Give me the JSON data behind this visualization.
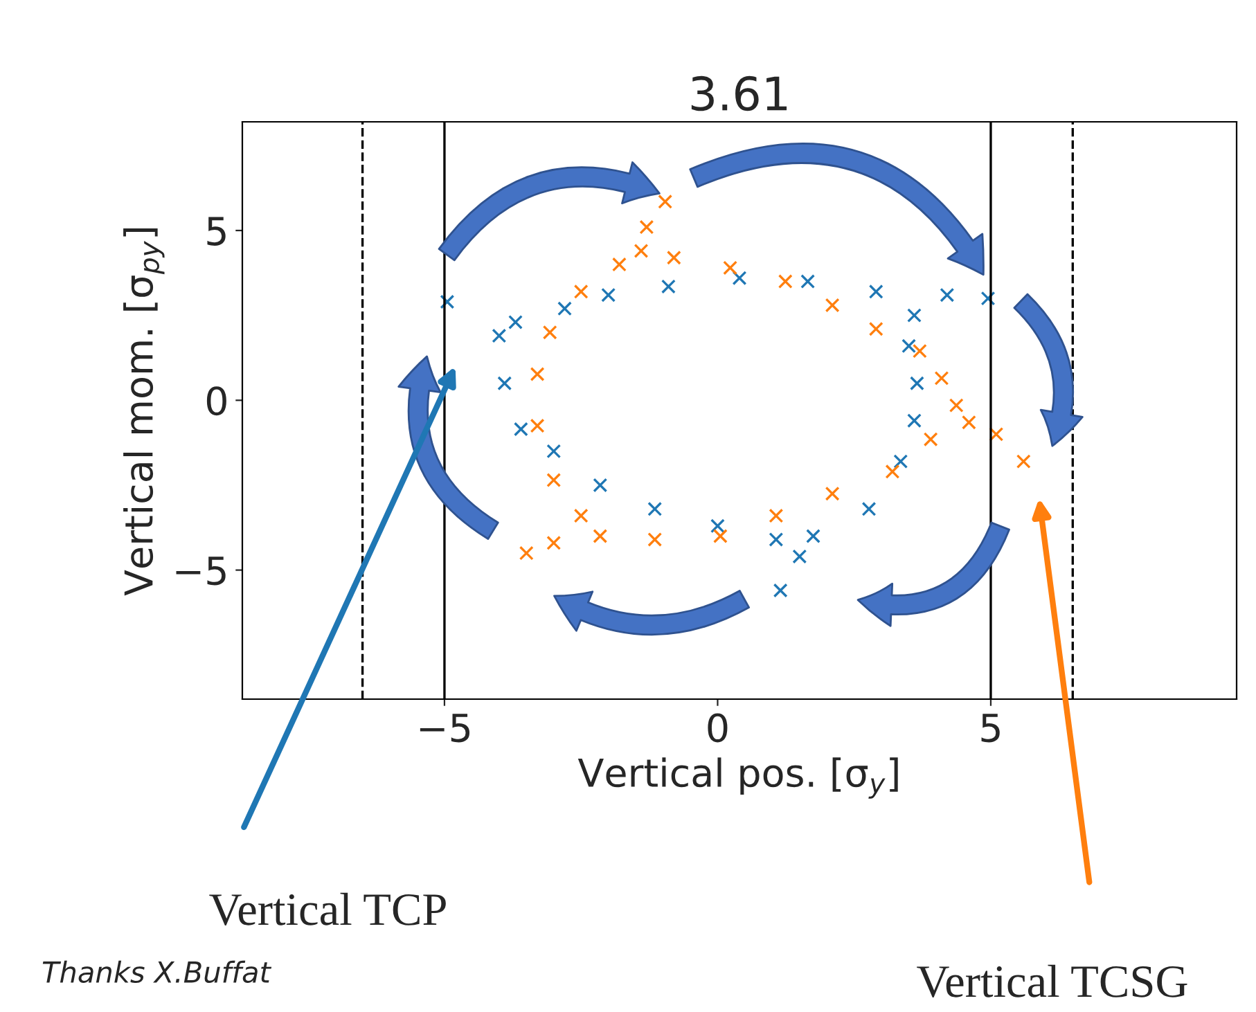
{
  "chart_data": {
    "type": "scatter",
    "title": "3.61",
    "xlabel": "Vertical pos. [σ$_{y}$]",
    "ylabel": "Vertical mom. [σ$_{py}$]",
    "xlim": [
      -8.7,
      9.5
    ],
    "ylim": [
      -8.8,
      8.2
    ],
    "xticks": [
      {
        "value": -5,
        "label": "−5"
      },
      0,
      5
    ],
    "yticks": [
      {
        "value": -5,
        "label": "−5"
      },
      0,
      5
    ],
    "marker": "cross",
    "grid": false,
    "ref_lines": [
      {
        "axis": "x",
        "value": -6.5,
        "color": "#000000",
        "line_style": "dashed"
      },
      {
        "axis": "x",
        "value": -5,
        "color": "#000000",
        "line_style": "solid"
      },
      {
        "axis": "x",
        "value": 5,
        "color": "#000000",
        "line_style": "solid"
      },
      {
        "axis": "x",
        "value": 6.5,
        "color": "#000000",
        "line_style": "dashed"
      }
    ],
    "series": [
      {
        "color": "#1f77b4",
        "x": [
          -4.95,
          -4.0,
          -3.9,
          -3.6,
          -3.0,
          -2.15,
          -1.15,
          0,
          1.07,
          1.5,
          1.15,
          1.75,
          2.77,
          3.35,
          3.6,
          3.65,
          3.5,
          3.6,
          4.2,
          4.95,
          2.9,
          1.65,
          0.4,
          -0.9,
          -2.0,
          -2.8,
          -3.7
        ],
        "values": [
          2.9,
          1.9,
          0.5,
          -0.85,
          -1.5,
          -2.5,
          -3.2,
          -3.7,
          -4.1,
          -4.6,
          -5.6,
          -4.0,
          -3.2,
          -1.8,
          -0.6,
          0.5,
          1.6,
          2.5,
          3.1,
          3.0,
          3.2,
          3.5,
          3.6,
          3.35,
          3.1,
          2.7,
          2.3
        ]
      },
      {
        "color": "#ff7f0e",
        "x": [
          -0.96,
          -1.3,
          -1.4,
          -0.8,
          0.23,
          1.24,
          2.1,
          2.9,
          3.7,
          4.1,
          4.37,
          4.6,
          5.1,
          5.6,
          3.9,
          3.2,
          2.1,
          1.07,
          0.05,
          -1.15,
          -2.15,
          -3.0,
          -3.5,
          -2.5,
          -3.0,
          -3.3,
          -3.3,
          -3.07,
          -2.5,
          -1.8
        ],
        "values": [
          5.85,
          5.1,
          4.4,
          4.2,
          3.9,
          3.5,
          2.8,
          2.1,
          1.45,
          0.65,
          -0.15,
          -0.65,
          -1.0,
          -1.8,
          -1.15,
          -2.1,
          -2.75,
          -3.4,
          -4.0,
          -4.1,
          -4.0,
          -4.2,
          -4.5,
          -3.4,
          -2.35,
          -0.75,
          0.77,
          2.0,
          3.2,
          4.0
        ]
      }
    ],
    "annotations": [
      "Vertical TCP",
      "Vertical TCSG",
      "Thanks X.Buffat"
    ]
  }
}
